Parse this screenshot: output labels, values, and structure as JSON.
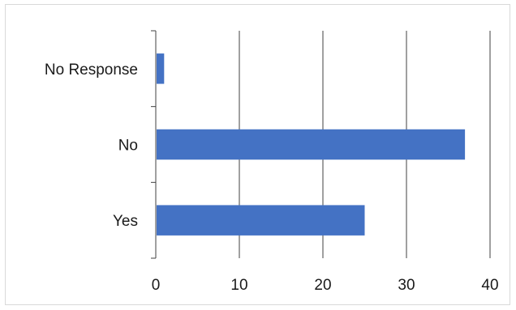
{
  "chart_data": {
    "type": "bar",
    "orientation": "horizontal",
    "categories": [
      "No Response",
      "No",
      "Yes"
    ],
    "values": [
      1,
      37,
      25
    ],
    "title": "",
    "xlabel": "",
    "ylabel": "",
    "xlim": [
      0,
      40
    ],
    "xticks": [
      "0",
      "10",
      "20",
      "30",
      "40"
    ],
    "grid": "vertical major gridlines",
    "legend": "none",
    "bar_color": "#4472c4",
    "gridline_color": "#404040"
  }
}
